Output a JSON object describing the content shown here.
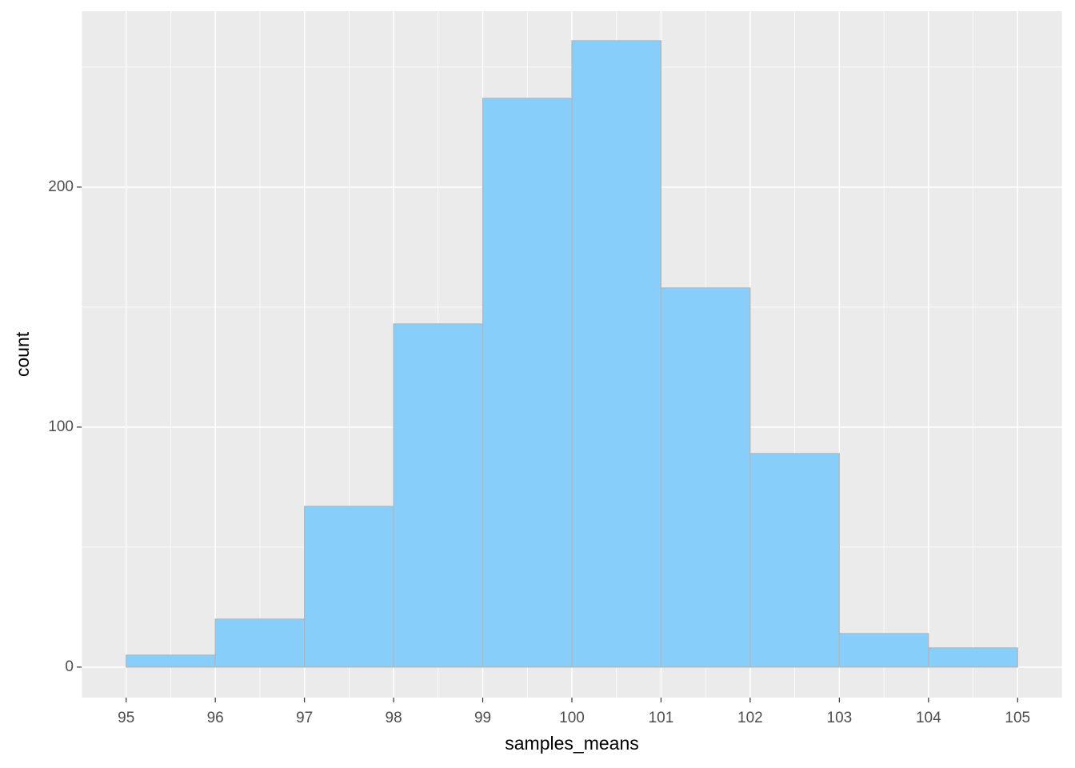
{
  "chart_data": {
    "type": "histogram",
    "x_label": "samples_means",
    "y_label": "count",
    "bins": [
      95,
      96,
      97,
      98,
      99,
      100,
      101,
      102,
      103,
      104,
      105
    ],
    "values": [
      5,
      20,
      67,
      143,
      237,
      261,
      158,
      89,
      14,
      8
    ],
    "color": "#87cefa",
    "edge_color": "#b5b5b5",
    "xlim": [
      94.5,
      105.5
    ],
    "ylim": [
      -12.7,
      273.3
    ],
    "xticks": [
      95,
      96,
      97,
      98,
      99,
      100,
      101,
      102,
      103,
      104,
      105
    ],
    "yticks": [
      0,
      100,
      200
    ],
    "grid": true
  }
}
